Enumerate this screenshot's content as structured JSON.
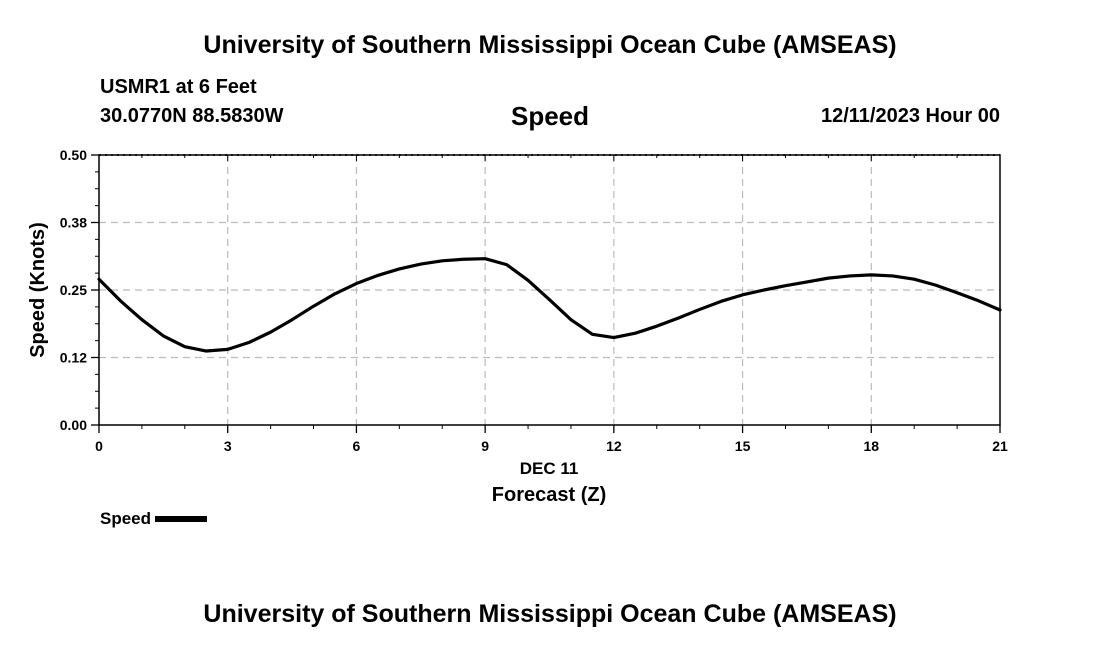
{
  "header": {
    "title": "University of Southern Mississippi Ocean Cube (AMSEAS)",
    "station": "USMR1 at 6 Feet",
    "coords": "30.0770N  88.5830W",
    "variable": "Speed",
    "datetime": "12/11/2023 Hour 00"
  },
  "footer": {
    "title": "University of Southern Mississippi Ocean Cube (AMSEAS)"
  },
  "legend": {
    "label": "Speed"
  },
  "chart_data": {
    "type": "line",
    "title": "Speed",
    "xlabel": "Forecast (Z)",
    "xsublabel": "DEC 11",
    "ylabel": "Speed (Knots)",
    "xlim": [
      0,
      21
    ],
    "ylim": [
      0,
      0.5
    ],
    "xticks": [
      0,
      3,
      6,
      9,
      12,
      15,
      18,
      21
    ],
    "xtick_labels": [
      "0",
      "3",
      "6",
      "9",
      "12",
      "15",
      "18",
      "21"
    ],
    "yticks": [
      0,
      0.125,
      0.25,
      0.375,
      0.5
    ],
    "ytick_labels": [
      "0.00",
      "0.12",
      "0.25",
      "0.38",
      "0.50"
    ],
    "grid": true,
    "line_color": "#000000",
    "grid_color": "#bbbbbb",
    "series": [
      {
        "name": "Speed",
        "x": [
          0,
          0.5,
          1,
          1.5,
          2,
          2.5,
          3,
          3.5,
          4,
          4.5,
          5,
          5.5,
          6,
          6.5,
          7,
          7.5,
          8,
          8.5,
          9,
          9.5,
          10,
          10.5,
          11,
          11.5,
          12,
          12.5,
          13,
          13.5,
          14,
          14.5,
          15,
          15.5,
          16,
          16.5,
          17,
          17.5,
          18,
          18.5,
          19,
          19.5,
          20,
          20.5,
          21
        ],
        "values": [
          0.27,
          0.23,
          0.195,
          0.165,
          0.145,
          0.137,
          0.14,
          0.153,
          0.172,
          0.195,
          0.22,
          0.243,
          0.262,
          0.277,
          0.289,
          0.298,
          0.304,
          0.307,
          0.308,
          0.297,
          0.268,
          0.232,
          0.195,
          0.168,
          0.162,
          0.17,
          0.183,
          0.198,
          0.214,
          0.229,
          0.241,
          0.25,
          0.258,
          0.265,
          0.272,
          0.276,
          0.278,
          0.276,
          0.27,
          0.259,
          0.245,
          0.23,
          0.213
        ]
      }
    ]
  }
}
